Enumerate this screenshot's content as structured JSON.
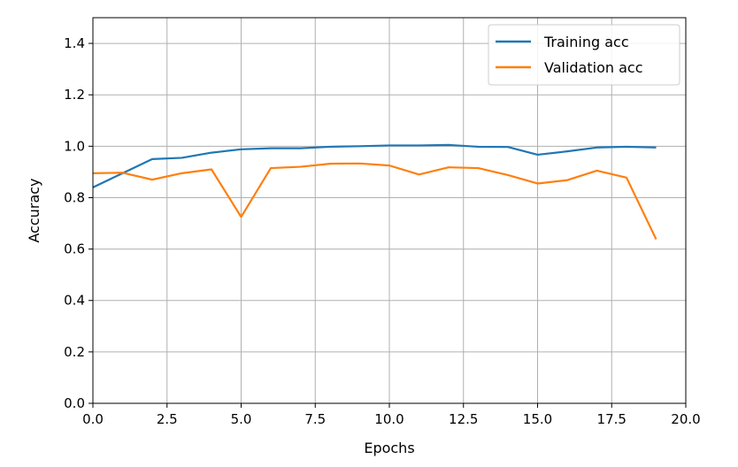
{
  "chart_data": {
    "type": "line",
    "xlabel": "Epochs",
    "ylabel": "Accuracy",
    "xlim": [
      0,
      20
    ],
    "ylim": [
      0,
      1.5
    ],
    "xticks": [
      "0.0",
      "2.5",
      "5.0",
      "7.5",
      "10.0",
      "12.5",
      "15.0",
      "17.5",
      "20.0"
    ],
    "yticks": [
      "0.0",
      "0.2",
      "0.4",
      "0.6",
      "0.8",
      "1.0",
      "1.2",
      "1.4"
    ],
    "grid": true,
    "legend_position": "top-right",
    "x": [
      0,
      1,
      2,
      3,
      4,
      5,
      6,
      7,
      8,
      9,
      10,
      11,
      12,
      13,
      14,
      15,
      16,
      17,
      18,
      19
    ],
    "series": [
      {
        "name": "Training acc",
        "color": "#1f77b4",
        "values": [
          0.84,
          0.895,
          0.95,
          0.955,
          0.975,
          0.988,
          0.992,
          0.992,
          0.998,
          1.0,
          1.003,
          1.003,
          1.005,
          0.998,
          0.997,
          0.967,
          0.98,
          0.995,
          0.998,
          0.995
        ]
      },
      {
        "name": "Validation acc",
        "color": "#ff7f0e",
        "values": [
          0.895,
          0.897,
          0.87,
          0.895,
          0.91,
          0.725,
          0.915,
          0.92,
          0.932,
          0.933,
          0.925,
          0.89,
          0.918,
          0.915,
          0.888,
          0.855,
          0.868,
          0.905,
          0.878,
          0.638
        ]
      }
    ]
  }
}
